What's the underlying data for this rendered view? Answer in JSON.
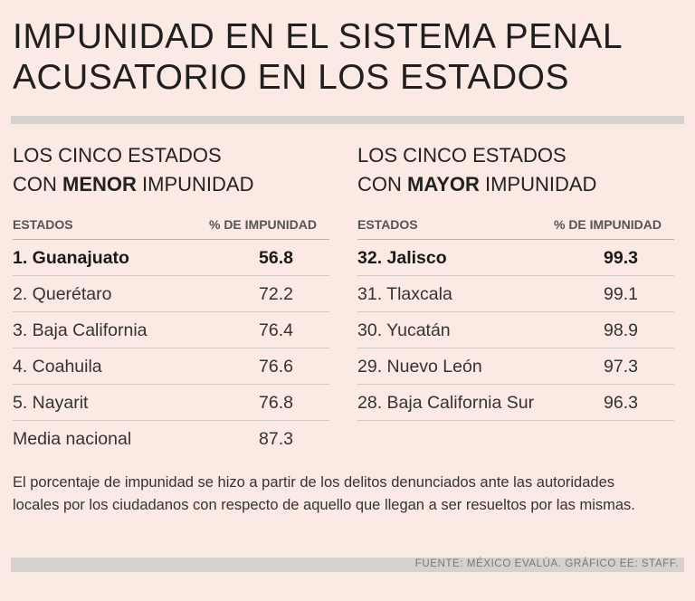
{
  "title": {
    "line1": "IMPUNIDAD EN EL SISTEMA PENAL",
    "line2": "ACUSATORIO EN LOS ESTADOS"
  },
  "left_table": {
    "heading_line1": "LOS CINCO ESTADOS",
    "heading_pre": "CON ",
    "heading_bold": "MENOR",
    "heading_post": " IMPUNIDAD",
    "col_state": "ESTADOS",
    "col_pct": "% DE IMPUNIDAD",
    "rows": [
      {
        "name": "1. Guanajuato",
        "value": "56.8"
      },
      {
        "name": "2. Querétaro",
        "value": "72.2"
      },
      {
        "name": "3. Baja California",
        "value": "76.4"
      },
      {
        "name": "4. Coahuila",
        "value": "76.6"
      },
      {
        "name": "5. Nayarit",
        "value": "76.8"
      },
      {
        "name": "Media nacional",
        "value": "87.3"
      }
    ]
  },
  "right_table": {
    "heading_line1": "LOS CINCO ESTADOS",
    "heading_pre": "CON ",
    "heading_bold": "MAYOR",
    "heading_post": " IMPUNIDAD",
    "col_state": "ESTADOS",
    "col_pct": "% DE IMPUNIDAD",
    "rows": [
      {
        "name": "32. Jalisco",
        "value": "99.3"
      },
      {
        "name": "31. Tlaxcala",
        "value": "99.1"
      },
      {
        "name": "30. Yucatán",
        "value": "98.9"
      },
      {
        "name": "29. Nuevo León",
        "value": "97.3"
      },
      {
        "name": "28. Baja California Sur",
        "value": "96.3"
      }
    ]
  },
  "note": "El porcentaje de impunidad se hizo a partir de los delitos denunciados ante las autoridades locales por los ciudadanos con respecto de aquello que llegan a ser resueltos por las mismas.",
  "source": "FUENTE: MÉXICO EVALÚA. GRÁFICO EE: STAFF."
}
